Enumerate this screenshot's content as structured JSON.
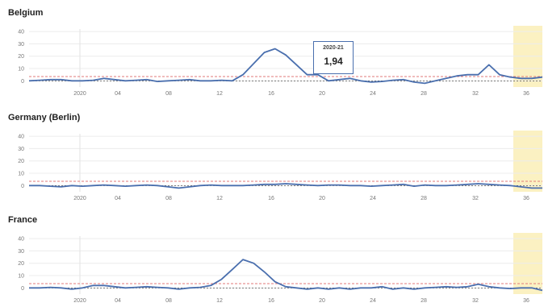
{
  "chart_data": [
    {
      "type": "line",
      "title": "Belgium",
      "ylim": [
        -5,
        42
      ],
      "y_ticks": [
        0,
        10,
        20,
        30,
        40
      ],
      "x_tick_labels": [
        "2020",
        "04",
        "08",
        "12",
        "16",
        "20",
        "24",
        "28",
        "32",
        "36"
      ],
      "highlight_region": "last weeks",
      "colors": {
        "line": "#4a6fae",
        "threshold": "#e07a7a",
        "baseline": "#555555",
        "highlight": "#fbf1c2"
      },
      "series": [
        {
          "values": [
            0,
            0.5,
            1,
            1,
            0,
            0,
            0.5,
            2,
            1,
            0,
            0.5,
            1,
            -0.5,
            0,
            0.5,
            1,
            0,
            0,
            0.5,
            0,
            5,
            14,
            23,
            26,
            21,
            13,
            5,
            5,
            0,
            1,
            2,
            0,
            -1,
            -0.5,
            0.5,
            1,
            -1,
            -2,
            0,
            2,
            4,
            5,
            5,
            13,
            5,
            3,
            2,
            2,
            3
          ]
        }
      ],
      "tooltip": {
        "label": "2020-21",
        "value": "1,94"
      }
    },
    {
      "type": "line",
      "title": "Germany (Berlin)",
      "ylim": [
        -5,
        42
      ],
      "y_ticks": [
        0,
        10,
        20,
        30,
        40
      ],
      "x_tick_labels": [
        "2020",
        "04",
        "08",
        "12",
        "16",
        "20",
        "24",
        "28",
        "32",
        "36"
      ],
      "highlight_region": "last weeks",
      "colors": {
        "line": "#4a6fae",
        "threshold": "#e07a7a",
        "baseline": "#555555",
        "highlight": "#fbf1c2"
      },
      "series": [
        {
          "values": [
            0,
            0,
            -0.5,
            -1,
            0,
            -0.5,
            0,
            0.5,
            0,
            -0.5,
            0,
            0.5,
            0,
            -1,
            -2,
            -1,
            0,
            0.5,
            0,
            0,
            0,
            0.5,
            1,
            1,
            1.5,
            1,
            0.5,
            0,
            0.5,
            0.5,
            0,
            0,
            -0.5,
            0,
            0.5,
            1,
            -0.5,
            0.5,
            0,
            0,
            0.5,
            1,
            1.5,
            1,
            0.5,
            0,
            -1,
            -2,
            -2
          ]
        }
      ]
    },
    {
      "type": "line",
      "title": "France",
      "ylim": [
        -5,
        42
      ],
      "y_ticks": [
        0,
        10,
        20,
        30,
        40
      ],
      "x_tick_labels": [
        "2020",
        "04",
        "08",
        "12",
        "16",
        "20",
        "24",
        "28",
        "32",
        "36"
      ],
      "highlight_region": "last weeks",
      "colors": {
        "line": "#4a6fae",
        "threshold": "#e07a7a",
        "baseline": "#555555",
        "highlight": "#fbf1c2"
      },
      "series": [
        {
          "values": [
            0,
            0,
            0.5,
            0,
            -1,
            0,
            2,
            2,
            1,
            0,
            0.5,
            1,
            0.5,
            0,
            -1,
            0,
            0.5,
            2,
            7,
            15,
            23,
            20,
            13,
            5,
            1,
            0,
            -1,
            0,
            -1,
            0,
            -1,
            0,
            0,
            1,
            -1,
            0,
            -1,
            0,
            0.5,
            1,
            0.5,
            1,
            3,
            1,
            0,
            -0.5,
            0,
            0,
            -2
          ]
        }
      ]
    }
  ]
}
